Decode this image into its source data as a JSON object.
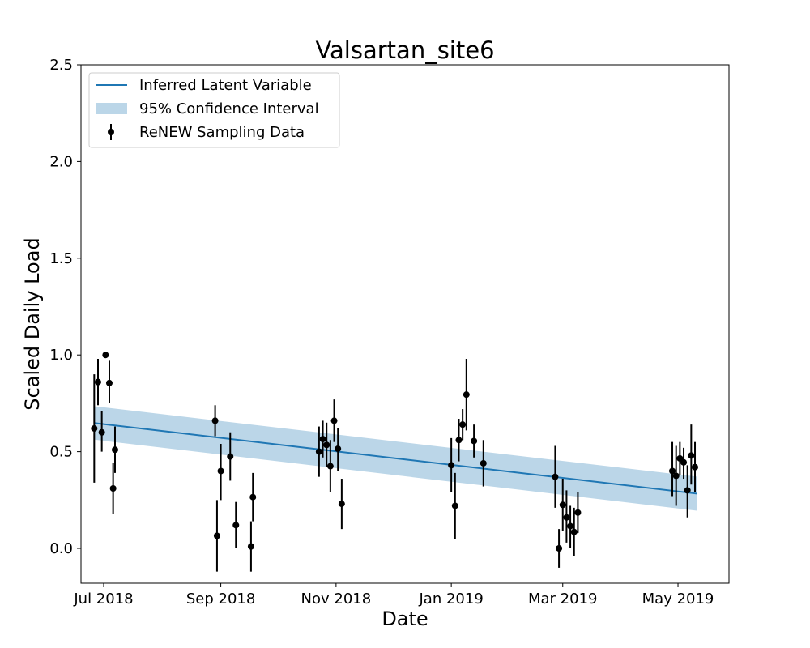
{
  "chart_data": {
    "type": "scatter",
    "title": "Valsartan_site6",
    "xlabel": "Date",
    "ylabel": "Scaled Daily Load",
    "xlim": [
      "2018-06-19",
      "2019-05-28"
    ],
    "ylim": [
      -0.18,
      2.5
    ],
    "x_ticks": [
      {
        "date": "2018-07-01",
        "label": "Jul 2018"
      },
      {
        "date": "2018-09-01",
        "label": "Sep 2018"
      },
      {
        "date": "2018-11-01",
        "label": "Nov 2018"
      },
      {
        "date": "2019-01-01",
        "label": "Jan 2019"
      },
      {
        "date": "2019-03-01",
        "label": "Mar 2019"
      },
      {
        "date": "2019-05-01",
        "label": "May 2019"
      }
    ],
    "y_ticks": [
      {
        "value": 0.0,
        "label": "0.0"
      },
      {
        "value": 0.5,
        "label": "0.5"
      },
      {
        "value": 1.0,
        "label": "1.0"
      },
      {
        "value": 1.5,
        "label": "1.5"
      },
      {
        "value": 2.0,
        "label": "2.0"
      },
      {
        "value": 2.5,
        "label": "2.5"
      }
    ],
    "legend_position": "top-left",
    "grid": false,
    "colors": {
      "line": "#1f77b4",
      "band": "#1f77b4",
      "points": "#000000"
    },
    "legend": [
      {
        "label": "Inferred Latent Variable",
        "kind": "line"
      },
      {
        "label": "95% Confidence Interval",
        "kind": "band"
      },
      {
        "label": "ReNEW Sampling Data",
        "kind": "errorbar"
      }
    ],
    "latent_line": {
      "x": [
        "2018-06-26",
        "2019-05-11"
      ],
      "y": [
        0.648,
        0.283
      ]
    },
    "confidence_band": {
      "x": [
        "2018-06-26",
        "2019-05-11"
      ],
      "lower": [
        0.562,
        0.195
      ],
      "upper": [
        0.735,
        0.371
      ]
    },
    "sampling_data": [
      {
        "date": "2018-06-26",
        "y": 0.62,
        "low": 0.34,
        "high": 0.9
      },
      {
        "date": "2018-06-28",
        "y": 0.86,
        "low": 0.74,
        "high": 0.98
      },
      {
        "date": "2018-06-30",
        "y": 0.6,
        "low": 0.5,
        "high": 0.71
      },
      {
        "date": "2018-07-02",
        "y": 1.0,
        "low": 0.99,
        "high": 1.01
      },
      {
        "date": "2018-07-04",
        "y": 0.855,
        "low": 0.75,
        "high": 0.97
      },
      {
        "date": "2018-07-06",
        "y": 0.31,
        "low": 0.18,
        "high": 0.44
      },
      {
        "date": "2018-07-07",
        "y": 0.51,
        "low": 0.39,
        "high": 0.63
      },
      {
        "date": "2018-08-29",
        "y": 0.66,
        "low": 0.58,
        "high": 0.74
      },
      {
        "date": "2018-08-30",
        "y": 0.065,
        "low": -0.12,
        "high": 0.25
      },
      {
        "date": "2018-09-01",
        "y": 0.4,
        "low": 0.25,
        "high": 0.54
      },
      {
        "date": "2018-09-06",
        "y": 0.475,
        "low": 0.35,
        "high": 0.6
      },
      {
        "date": "2018-09-09",
        "y": 0.12,
        "low": 0.0,
        "high": 0.24
      },
      {
        "date": "2018-09-17",
        "y": 0.01,
        "low": -0.12,
        "high": 0.14
      },
      {
        "date": "2018-09-18",
        "y": 0.265,
        "low": 0.14,
        "high": 0.39
      },
      {
        "date": "2018-10-23",
        "y": 0.5,
        "low": 0.37,
        "high": 0.63
      },
      {
        "date": "2018-10-25",
        "y": 0.565,
        "low": 0.47,
        "high": 0.66
      },
      {
        "date": "2018-10-27",
        "y": 0.535,
        "low": 0.42,
        "high": 0.65
      },
      {
        "date": "2018-10-29",
        "y": 0.425,
        "low": 0.29,
        "high": 0.56
      },
      {
        "date": "2018-10-31",
        "y": 0.66,
        "low": 0.55,
        "high": 0.77
      },
      {
        "date": "2018-11-02",
        "y": 0.515,
        "low": 0.4,
        "high": 0.62
      },
      {
        "date": "2018-11-04",
        "y": 0.23,
        "low": 0.1,
        "high": 0.36
      },
      {
        "date": "2019-01-01",
        "y": 0.43,
        "low": 0.29,
        "high": 0.57
      },
      {
        "date": "2019-01-03",
        "y": 0.22,
        "low": 0.05,
        "high": 0.39
      },
      {
        "date": "2019-01-05",
        "y": 0.56,
        "low": 0.45,
        "high": 0.67
      },
      {
        "date": "2019-01-07",
        "y": 0.64,
        "low": 0.56,
        "high": 0.72
      },
      {
        "date": "2019-01-09",
        "y": 0.795,
        "low": 0.61,
        "high": 0.98
      },
      {
        "date": "2019-01-13",
        "y": 0.555,
        "low": 0.47,
        "high": 0.64
      },
      {
        "date": "2019-01-18",
        "y": 0.44,
        "low": 0.32,
        "high": 0.56
      },
      {
        "date": "2019-02-25",
        "y": 0.37,
        "low": 0.21,
        "high": 0.53
      },
      {
        "date": "2019-02-27",
        "y": 0.0,
        "low": -0.1,
        "high": 0.1
      },
      {
        "date": "2019-03-01",
        "y": 0.225,
        "low": 0.09,
        "high": 0.36
      },
      {
        "date": "2019-03-03",
        "y": 0.16,
        "low": 0.03,
        "high": 0.3
      },
      {
        "date": "2019-03-05",
        "y": 0.115,
        "low": 0.0,
        "high": 0.22
      },
      {
        "date": "2019-03-07",
        "y": 0.085,
        "low": -0.04,
        "high": 0.21
      },
      {
        "date": "2019-03-09",
        "y": 0.185,
        "low": 0.08,
        "high": 0.29
      },
      {
        "date": "2019-04-28",
        "y": 0.4,
        "low": 0.27,
        "high": 0.55
      },
      {
        "date": "2019-04-30",
        "y": 0.375,
        "low": 0.22,
        "high": 0.53
      },
      {
        "date": "2019-05-02",
        "y": 0.465,
        "low": 0.38,
        "high": 0.55
      },
      {
        "date": "2019-05-04",
        "y": 0.445,
        "low": 0.36,
        "high": 0.52
      },
      {
        "date": "2019-05-06",
        "y": 0.3,
        "low": 0.16,
        "high": 0.43
      },
      {
        "date": "2019-05-08",
        "y": 0.48,
        "low": 0.33,
        "high": 0.64
      },
      {
        "date": "2019-05-10",
        "y": 0.42,
        "low": 0.29,
        "high": 0.55
      }
    ]
  }
}
